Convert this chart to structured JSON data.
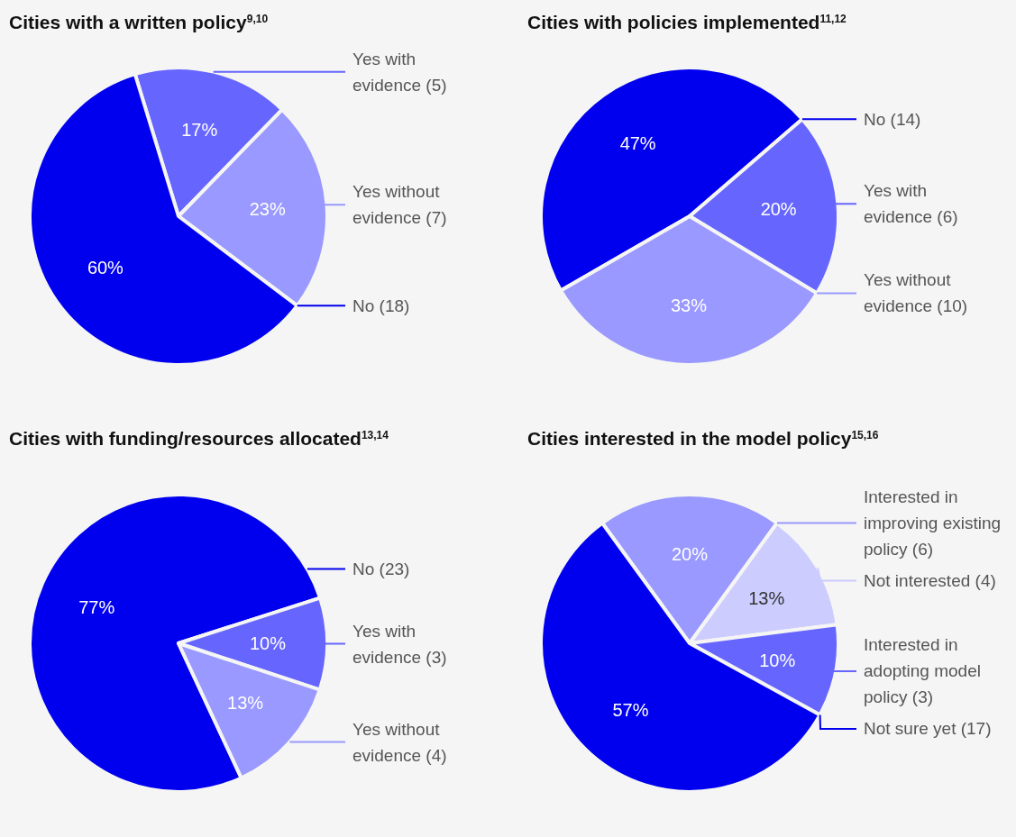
{
  "chart_data": [
    {
      "type": "pie",
      "title": "Cities with a written policy$^{9,10}$",
      "categories": [
        "Yes with evidence (5)",
        "Yes without evidence (7)",
        "No (18)"
      ],
      "values": [
        17,
        23,
        60
      ],
      "colors": [
        "#6666ff",
        "#9999ff",
        "#0000ee"
      ],
      "value_labels": [
        "17%",
        "23%",
        "60%"
      ]
    },
    {
      "type": "pie",
      "title": "Cities with policies implemented$^{11,12}$",
      "categories": [
        "No (14)",
        "Yes with evidence (6)",
        "Yes without evidence (10)"
      ],
      "values": [
        47,
        20,
        33
      ],
      "colors": [
        "#0000ee",
        "#6666ff",
        "#9999ff"
      ],
      "value_labels": [
        "47%",
        "20%",
        "33%"
      ]
    },
    {
      "type": "pie",
      "title": "Cities with funding/resources allocated$^{13,14}$",
      "categories": [
        "No (23)",
        "Yes with evidence (3)",
        "Yes without evidence (4)"
      ],
      "values": [
        77,
        10,
        13
      ],
      "colors": [
        "#0000ee",
        "#6666ff",
        "#9999ff"
      ],
      "value_labels": [
        "77%",
        "10%",
        "13%"
      ]
    },
    {
      "type": "pie",
      "title": "Cities interested in the model policy$^{15,16}$",
      "categories": [
        "Interested in improving existing policy (6)",
        "Not interested (4)",
        "Interested in adopting model policy (3)",
        "Not sure yet (17)"
      ],
      "values": [
        20,
        13,
        10,
        57
      ],
      "colors": [
        "#9999ff",
        "#ccccff",
        "#6666ff",
        "#0000ee"
      ],
      "value_labels": [
        "20%",
        "13%",
        "10%",
        "57%"
      ]
    }
  ]
}
